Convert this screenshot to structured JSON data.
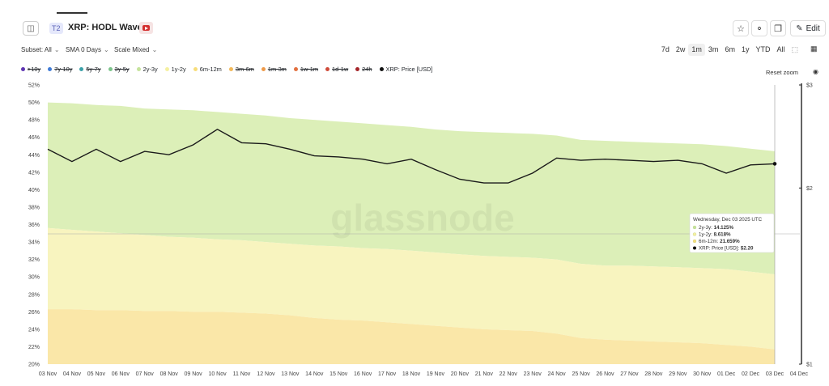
{
  "header": {
    "tier": "T2",
    "title": "XRP: HODL Waves",
    "edit_label": "Edit"
  },
  "toolbar": {
    "subset": "Subset: All",
    "sma": "SMA 0 Days",
    "scale": "Scale Mixed"
  },
  "ranges": [
    "7d",
    "2w",
    "1m",
    "3m",
    "6m",
    "1y",
    "YTD",
    "All"
  ],
  "active_range": "1m",
  "reset_zoom": "Reset zoom",
  "watermark": "glassnode",
  "legend": [
    {
      "label": ">10y",
      "color": "#5e35b1",
      "off": true
    },
    {
      "label": "7y-10y",
      "color": "#3f7bd6",
      "off": true
    },
    {
      "label": "5y-7y",
      "color": "#3aa0a8",
      "off": true
    },
    {
      "label": "3y-5y",
      "color": "#7cc48b",
      "off": true
    },
    {
      "label": "2y-3y",
      "color": "#c5e39b",
      "off": false
    },
    {
      "label": "1y-2y",
      "color": "#f5f0a0",
      "off": false
    },
    {
      "label": "6m-12m",
      "color": "#f7dd7a",
      "off": false
    },
    {
      "label": "3m-6m",
      "color": "#f2b95a",
      "off": true
    },
    {
      "label": "1m-3m",
      "color": "#ee9a4a",
      "off": true
    },
    {
      "label": "1w-1m",
      "color": "#e2703f",
      "off": true
    },
    {
      "label": "1d-1w",
      "color": "#cf4b3a",
      "off": true
    },
    {
      "label": "24h",
      "color": "#a5262a",
      "off": true
    },
    {
      "label": "XRP: Price [USD]",
      "color": "#111111",
      "off": false
    }
  ],
  "tooltip": {
    "date": "Wednesday, Dec 03 2025 UTC",
    "rows": [
      {
        "label": "2y-3y:",
        "value": "14.125%",
        "color": "#c5e39b"
      },
      {
        "label": "1y-2y:",
        "value": "8.618%",
        "color": "#f5f0a0"
      },
      {
        "label": "6m-12m:",
        "value": "21.659%",
        "color": "#f7dd7a"
      },
      {
        "label": "XRP: Price [USD]:",
        "value": "$2.20",
        "color": "#111111"
      }
    ]
  },
  "colors": {
    "band_2y_3y": "#dcefb8",
    "band_1y_2y": "#f8f4bf",
    "band_6m_12m": "#fae7a8",
    "price_line": "#1a1a1a"
  },
  "chart_data": {
    "type": "area",
    "title": "XRP: HODL Waves",
    "x": [
      "03 Nov",
      "04 Nov",
      "05 Nov",
      "06 Nov",
      "07 Nov",
      "08 Nov",
      "09 Nov",
      "10 Nov",
      "11 Nov",
      "12 Nov",
      "13 Nov",
      "14 Nov",
      "15 Nov",
      "16 Nov",
      "17 Nov",
      "18 Nov",
      "19 Nov",
      "20 Nov",
      "21 Nov",
      "22 Nov",
      "23 Nov",
      "24 Nov",
      "25 Nov",
      "26 Nov",
      "27 Nov",
      "28 Nov",
      "29 Nov",
      "30 Nov",
      "01 Dec",
      "02 Dec",
      "03 Dec"
    ],
    "x_ticks": [
      "03 Nov",
      "04 Nov",
      "05 Nov",
      "06 Nov",
      "07 Nov",
      "08 Nov",
      "09 Nov",
      "10 Nov",
      "11 Nov",
      "12 Nov",
      "13 Nov",
      "14 Nov",
      "15 Nov",
      "16 Nov",
      "17 Nov",
      "18 Nov",
      "19 Nov",
      "20 Nov",
      "21 Nov",
      "22 Nov",
      "23 Nov",
      "24 Nov",
      "25 Nov",
      "26 Nov",
      "27 Nov",
      "28 Nov",
      "29 Nov",
      "30 Nov",
      "01 Dec",
      "02 Dec",
      "03 Dec",
      "04 Dec"
    ],
    "ylim": [
      20,
      52
    ],
    "y_ticks": [
      "20%",
      "22%",
      "24%",
      "26%",
      "28%",
      "30%",
      "32%",
      "34%",
      "36%",
      "38%",
      "40%",
      "42%",
      "44%",
      "46%",
      "48%",
      "50%",
      "52%"
    ],
    "y2_ticks": [
      "$1",
      "$2",
      "$3"
    ],
    "y2lim_log": [
      1,
      3
    ],
    "series": [
      {
        "name": "6m-12m",
        "values": [
          26.3,
          26.3,
          26.2,
          26.2,
          26.1,
          26.1,
          26.0,
          26.0,
          25.9,
          25.8,
          25.6,
          25.3,
          25.1,
          25.0,
          24.8,
          24.6,
          24.4,
          24.2,
          24.0,
          23.9,
          23.8,
          23.5,
          23.0,
          22.8,
          22.7,
          22.6,
          22.5,
          22.4,
          22.2,
          22.0,
          21.7
        ]
      },
      {
        "name": "1y-2y",
        "values": [
          35.6,
          35.4,
          35.2,
          35.0,
          34.8,
          34.6,
          34.5,
          34.3,
          34.2,
          34.0,
          33.8,
          33.6,
          33.5,
          33.3,
          33.2,
          33.0,
          32.8,
          32.6,
          32.4,
          32.3,
          32.2,
          32.0,
          31.5,
          31.3,
          31.3,
          31.2,
          31.1,
          31.0,
          30.9,
          30.6,
          30.3
        ]
      },
      {
        "name": "2y-3y",
        "values": [
          50.0,
          49.9,
          49.7,
          49.6,
          49.3,
          49.2,
          49.1,
          48.9,
          48.7,
          48.5,
          48.2,
          48.0,
          47.8,
          47.6,
          47.4,
          47.2,
          46.9,
          46.7,
          46.6,
          46.5,
          46.4,
          46.2,
          45.7,
          45.6,
          45.5,
          45.4,
          45.3,
          45.2,
          45.0,
          44.7,
          44.4
        ]
      },
      {
        "name": "XRP: Price [USD]",
        "axis": "right",
        "values": [
          2.33,
          2.22,
          2.33,
          2.22,
          2.31,
          2.28,
          2.37,
          2.52,
          2.39,
          2.38,
          2.33,
          2.27,
          2.26,
          2.24,
          2.2,
          2.24,
          2.15,
          2.07,
          2.04,
          2.04,
          2.12,
          2.25,
          2.23,
          2.24,
          2.23,
          2.22,
          2.23,
          2.2,
          2.12,
          2.19,
          2.2
        ]
      }
    ]
  }
}
